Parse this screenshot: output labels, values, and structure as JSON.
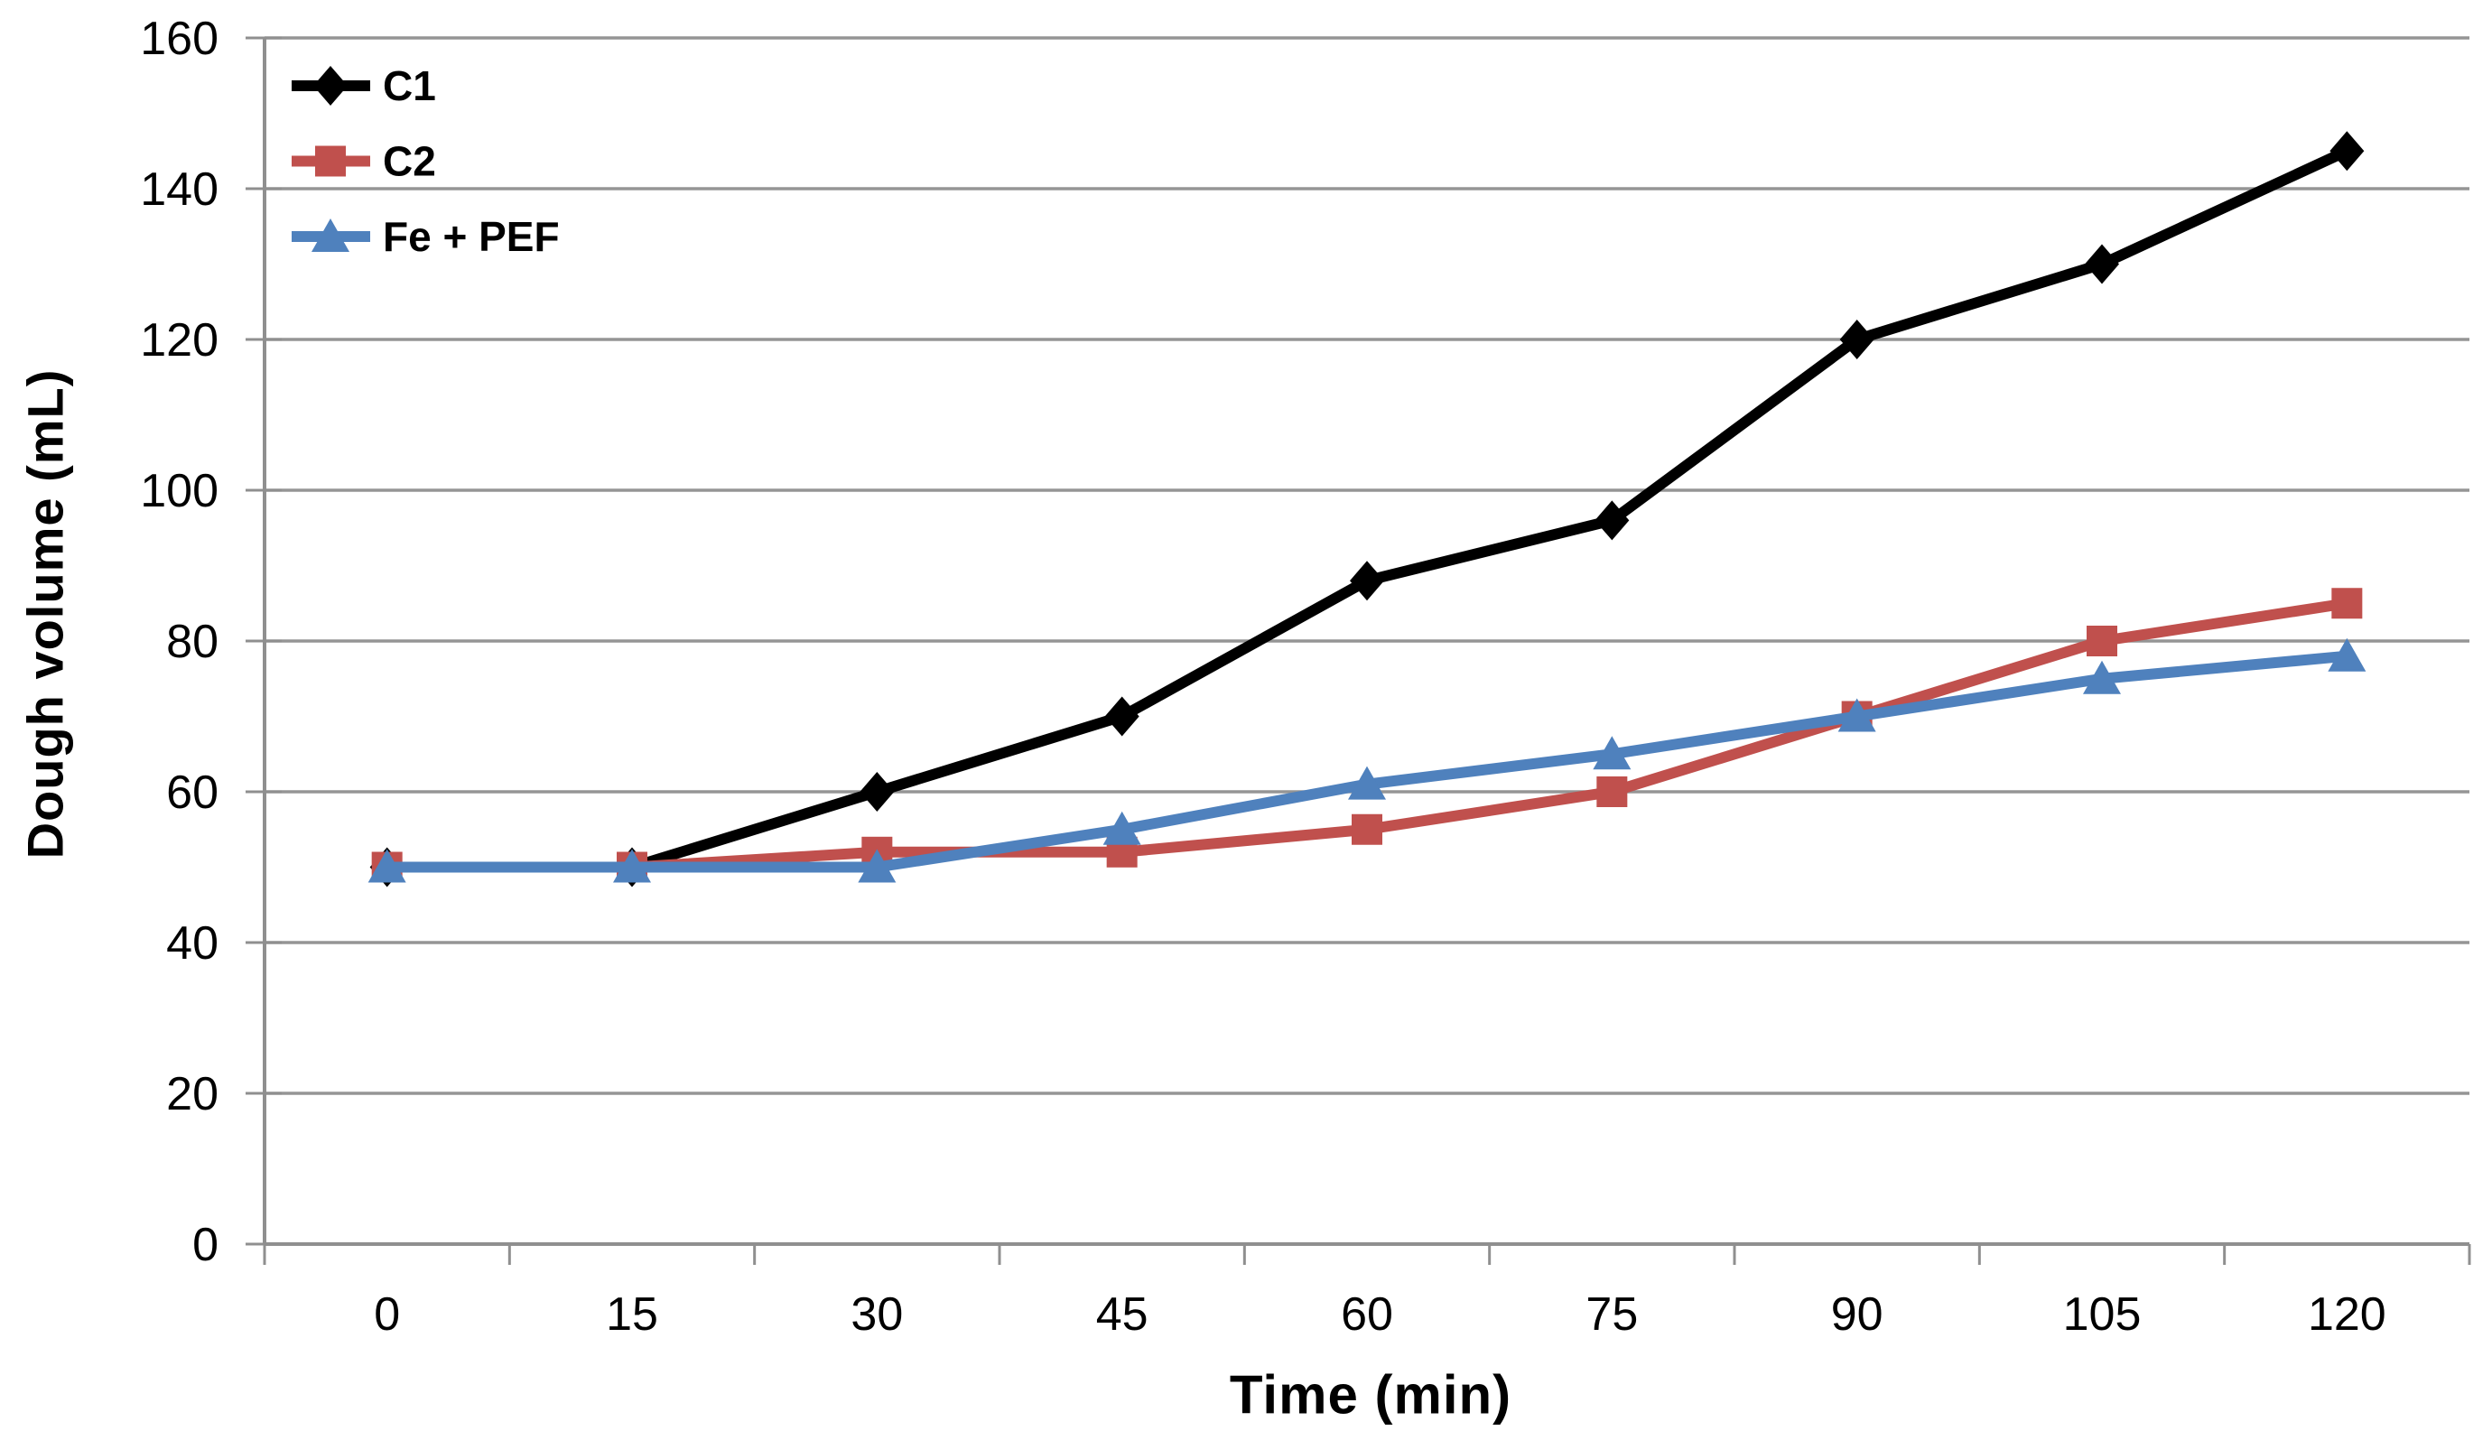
{
  "figure": {
    "background": "#ffffff",
    "x_axis_title": "Time (min)",
    "y_axis_title": "Dough volume (mL)"
  },
  "chart_data": {
    "type": "line",
    "title": "",
    "xlabel": "Time (min)",
    "ylabel": "Dough volume (mL)",
    "categories": [
      0,
      15,
      30,
      45,
      60,
      75,
      90,
      105,
      120
    ],
    "x_tick_labels": [
      "0",
      "15",
      "30",
      "45",
      "60",
      "75",
      "90",
      "105",
      "120"
    ],
    "series": [
      {
        "name": "C1",
        "color": "#000000",
        "marker": "diamond",
        "values": [
          50,
          50,
          60,
          70,
          88,
          96,
          120,
          130,
          145
        ]
      },
      {
        "name": "C2",
        "color": "#c0504d",
        "marker": "square",
        "values": [
          50,
          50,
          52,
          52,
          55,
          60,
          70,
          80,
          85
        ]
      },
      {
        "name": "Fe + PEF",
        "color": "#4f81bd",
        "marker": "triangle",
        "values": [
          50,
          50,
          50,
          55,
          61,
          65,
          70,
          75,
          78
        ]
      }
    ],
    "y_axis": {
      "min": 0,
      "max": 160,
      "step": 20,
      "tick_labels": [
        "0",
        "20",
        "40",
        "60",
        "80",
        "100",
        "120",
        "140",
        "160"
      ]
    },
    "grid": true,
    "legend_position": "top-left-inside",
    "colors": {
      "gridline": "#959595",
      "axis": "#8f8f8f",
      "tick": "#8f8f8f",
      "text": "#000000"
    }
  }
}
